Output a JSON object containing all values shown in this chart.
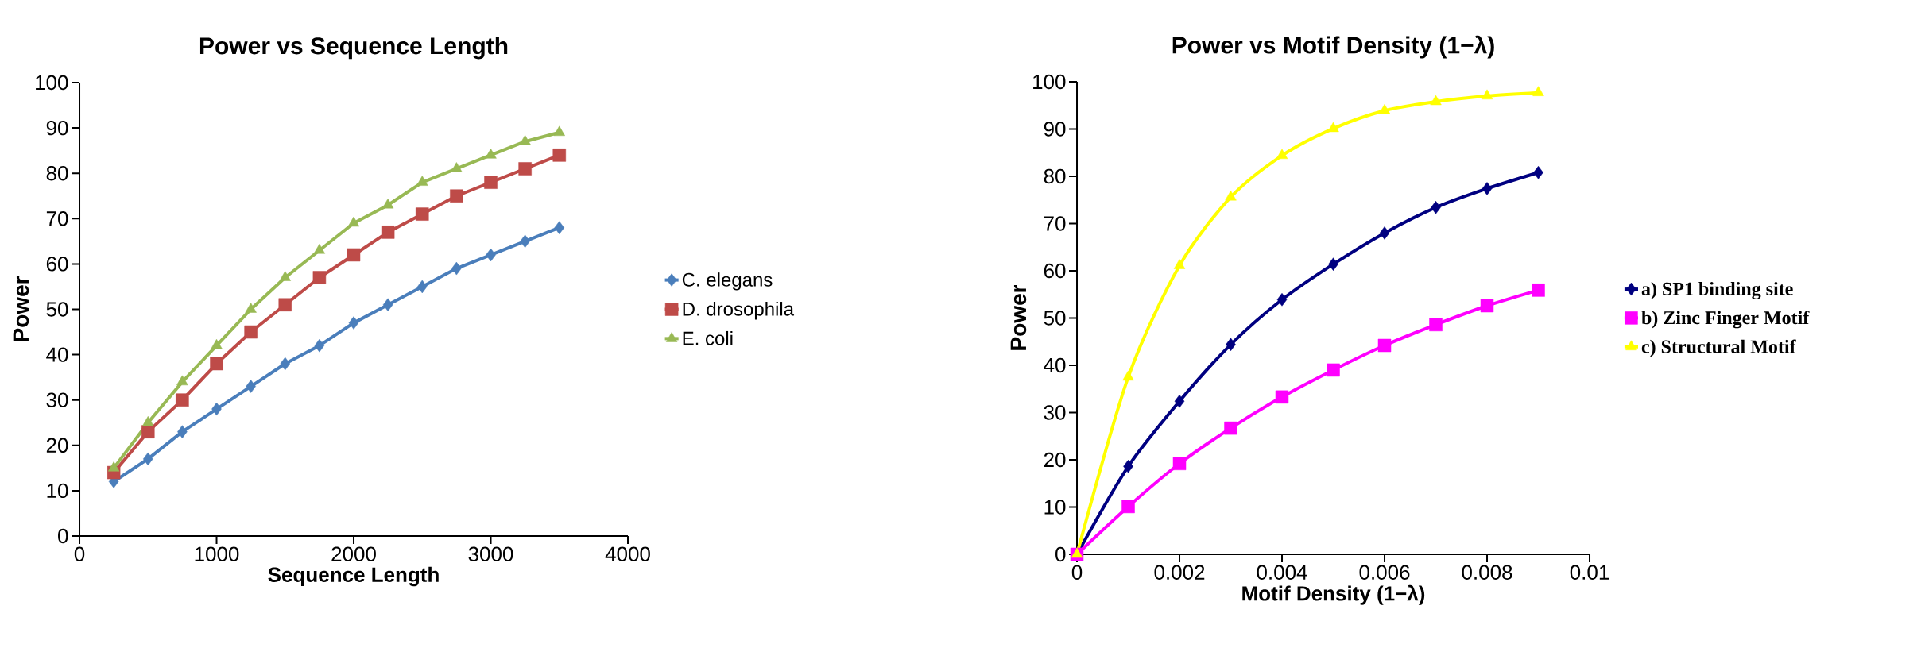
{
  "chart_data": [
    {
      "type": "line",
      "title": "Power vs Sequence Length",
      "xlabel": "Sequence Length",
      "ylabel": "Power",
      "x": [
        250,
        500,
        750,
        1000,
        1250,
        1500,
        1750,
        2000,
        2250,
        2500,
        2750,
        3000,
        3250,
        3500
      ],
      "series": [
        {
          "name": "C. elegans",
          "color": "#4a7ebb",
          "marker": "diamond",
          "values": [
            12,
            17,
            23,
            28,
            33,
            38,
            42,
            47,
            51,
            55,
            59,
            62,
            65,
            68
          ]
        },
        {
          "name": "D. drosophila",
          "color": "#be4b48",
          "marker": "square",
          "values": [
            14,
            23,
            30,
            38,
            45,
            51,
            57,
            62,
            67,
            71,
            75,
            78,
            81,
            84
          ]
        },
        {
          "name": "E. coli",
          "color": "#98b954",
          "marker": "triangle",
          "values": [
            15,
            25,
            34,
            42,
            50,
            57,
            63,
            69,
            73,
            78,
            81,
            84,
            87,
            89
          ]
        }
      ],
      "xlim": [
        0,
        4000
      ],
      "xticks": [
        0,
        1000,
        2000,
        3000,
        4000
      ],
      "ylim": [
        0,
        100
      ],
      "yticks": [
        0,
        10,
        20,
        30,
        40,
        50,
        60,
        70,
        80,
        90,
        100
      ],
      "legend": "right",
      "grid": false
    },
    {
      "type": "line",
      "title": "Power vs Motif Density (1−λ)",
      "xlabel": "Motif Density (1−λ)",
      "ylabel": "Power",
      "x": [
        0,
        0.001,
        0.002,
        0.003,
        0.004,
        0.005,
        0.006,
        0.007,
        0.008,
        0.009
      ],
      "series": [
        {
          "name": "a) SP1 binding site",
          "color": "#000080",
          "marker": "diamond",
          "values": [
            0,
            18.6,
            32.4,
            44.4,
            53.9,
            61.4,
            68,
            73.4,
            77.4,
            80.8
          ]
        },
        {
          "name": "b) Zinc Finger Motif",
          "color": "#ff00ff",
          "marker": "square",
          "values": [
            0,
            10.1,
            19.2,
            26.7,
            33.3,
            39,
            44.2,
            48.6,
            52.6,
            55.9
          ]
        },
        {
          "name": "c) Structural Motif",
          "color": "#ffff00",
          "marker": "triangle",
          "values": [
            0,
            37.5,
            61.1,
            75.6,
            84.4,
            90.1,
            93.9,
            95.8,
            97,
            97.7
          ]
        }
      ],
      "xlim": [
        0,
        0.01
      ],
      "xticks": [
        0,
        0.002,
        0.004,
        0.006,
        0.008,
        0.01
      ],
      "ylim": [
        0,
        100
      ],
      "yticks": [
        0,
        10,
        20,
        30,
        40,
        50,
        60,
        70,
        80,
        90,
        100
      ],
      "legend": "right",
      "grid": false
    }
  ]
}
